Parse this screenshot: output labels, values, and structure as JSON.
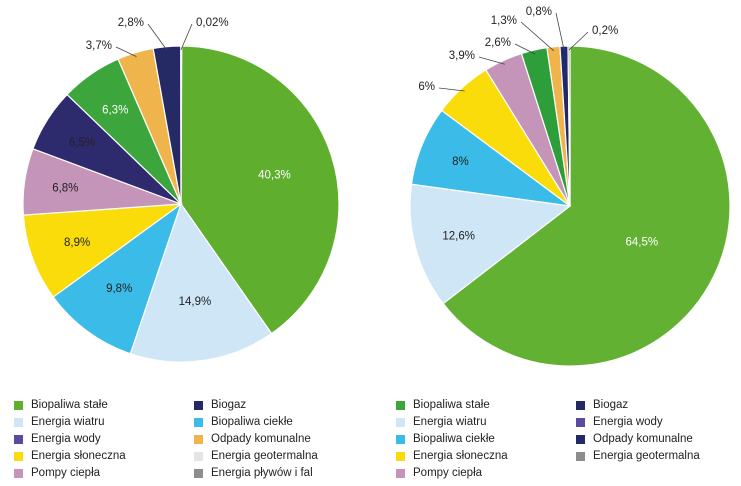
{
  "chart_data": [
    {
      "type": "pie",
      "title": "",
      "slices": [
        {
          "label": "Biopaliwa stałe",
          "value": 40.3,
          "text": "40,3%",
          "color": "#5fae2e"
        },
        {
          "label": "Energia wiatru",
          "value": 14.9,
          "text": "14,9%",
          "color": "#cfe6f6"
        },
        {
          "label": "Biopaliwa ciekłe",
          "value": 9.8,
          "text": "9,8%",
          "color": "#3bbbe8"
        },
        {
          "label": "Energia słoneczna",
          "value": 8.9,
          "text": "8,9%",
          "color": "#f9dc0a"
        },
        {
          "label": "Pompy ciepła",
          "value": 6.8,
          "text": "6,8%",
          "color": "#c594b9"
        },
        {
          "label": "Energia wody",
          "value": 6.5,
          "text": "6,5%",
          "color": "#2e2a6e"
        },
        {
          "label": "Biogaz",
          "value": 6.3,
          "text": "6,3%",
          "color": "#3ca53c"
        },
        {
          "label": "Odpady komunalne",
          "value": 3.7,
          "text": "3,7%",
          "color": "#f0b44c"
        },
        {
          "label": "Energia geotermalna",
          "value": 2.8,
          "text": "2,8%",
          "color": "#252a65"
        },
        {
          "label": "Energia pływów i fal",
          "value": 0.02,
          "text": "0,02%",
          "color": "#8d8d8d"
        }
      ],
      "legend": [
        {
          "label": "Biopaliwa stałe",
          "color": "#5fae2e"
        },
        {
          "label": "Biogaz",
          "color": "#252a65"
        },
        {
          "label": "Energia wiatru",
          "color": "#cfe6f6"
        },
        {
          "label": "Biopaliwa ciekłe",
          "color": "#3bbbe8"
        },
        {
          "label": "Energia wody",
          "color": "#5b4a9e"
        },
        {
          "label": "Odpady komunalne",
          "color": "#f0b44c"
        },
        {
          "label": "Energia słoneczna",
          "color": "#f9dc0a"
        },
        {
          "label": "Energia geotermalna",
          "color": "#e4e4e4"
        },
        {
          "label": "Pompy ciepła",
          "color": "#c594b9"
        },
        {
          "label": "Energia pływów i fal",
          "color": "#8d8d8d"
        }
      ],
      "legend_placement": "bottom"
    },
    {
      "type": "pie",
      "title": "",
      "slices": [
        {
          "label": "Biopaliwa stałe",
          "value": 64.5,
          "text": "64,5%",
          "color": "#62b132"
        },
        {
          "label": "Energia wiatru",
          "value": 12.6,
          "text": "12,6%",
          "color": "#cfe6f6"
        },
        {
          "label": "Biopaliwa ciekłe",
          "value": 8,
          "text": "8%",
          "color": "#3bbbe8"
        },
        {
          "label": "Energia słoneczna",
          "value": 6,
          "text": "6%",
          "color": "#f9dc0a"
        },
        {
          "label": "Pompy ciepła",
          "value": 3.9,
          "text": "3,9%",
          "color": "#c594b9"
        },
        {
          "label": "Biogaz",
          "value": 2.6,
          "text": "2,6%",
          "color": "#2e9e3a"
        },
        {
          "label": "Odpady komunalne",
          "value": 1.3,
          "text": "1,3%",
          "color": "#f0b44c"
        },
        {
          "label": "Energia wody",
          "value": 0.8,
          "text": "0,8%",
          "color": "#22286a"
        },
        {
          "label": "Energia geotermalna",
          "value": 0.2,
          "text": "0,2%",
          "color": "#8d8d8d"
        }
      ],
      "legend": [
        {
          "label": "Biopaliwa stałe",
          "color": "#3ca53c"
        },
        {
          "label": "Biogaz",
          "color": "#252a65"
        },
        {
          "label": "Energia wiatru",
          "color": "#cfe6f6"
        },
        {
          "label": "Energia wody",
          "color": "#5b4a9e"
        },
        {
          "label": "Biopaliwa ciekłe",
          "color": "#3bbbe8"
        },
        {
          "label": "Odpady komunalne",
          "color": "#22286a"
        },
        {
          "label": "Energia słoneczna",
          "color": "#f9dc0a"
        },
        {
          "label": "Energia geotermalna",
          "color": "#8d8d8d"
        },
        {
          "label": "Pompy ciepła",
          "color": "#c594b9"
        }
      ],
      "legend_placement": "bottom"
    }
  ]
}
